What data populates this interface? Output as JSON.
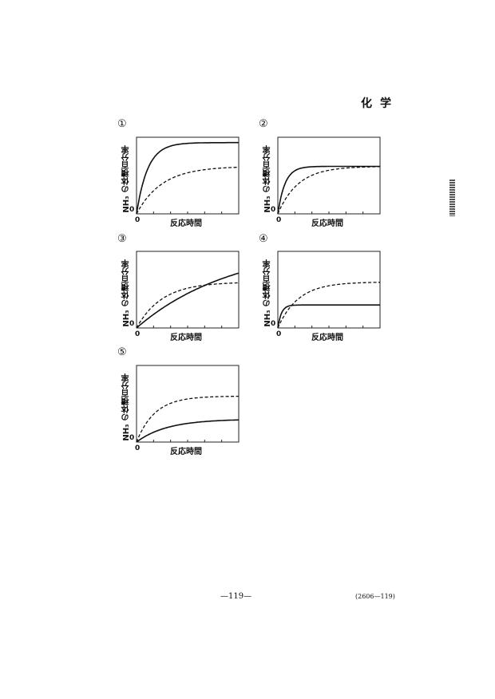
{
  "header": {
    "subject": "化学"
  },
  "footer": {
    "page": "—119—",
    "code": "(2606—119)"
  },
  "chart_data": [
    {
      "type": "line",
      "label": "①",
      "ylabel": "NH₃ の体積百分率",
      "xlabel": "反応時間",
      "y_origin": "0",
      "x_origin": "0",
      "series": [
        {
          "name": "solid",
          "style": "solid",
          "plateau": 0.93,
          "time_constant": 1.1
        },
        {
          "name": "dashed",
          "style": "dashed",
          "plateau": 0.62,
          "time_constant": 2.5
        }
      ]
    },
    {
      "type": "line",
      "label": "②",
      "ylabel": "NH₃ の体積百分率",
      "xlabel": "反応時間",
      "y_origin": "0",
      "x_origin": "0",
      "series": [
        {
          "name": "solid",
          "style": "solid",
          "plateau": 0.62,
          "time_constant": 0.7
        },
        {
          "name": "dashed",
          "style": "dashed",
          "plateau": 0.62,
          "time_constant": 2.0
        }
      ]
    },
    {
      "type": "line",
      "label": "③",
      "ylabel": "NH₃ の体積百分率",
      "xlabel": "反応時間",
      "y_origin": "0",
      "x_origin": "0",
      "series": [
        {
          "name": "solid",
          "style": "solid",
          "plateau": 1.1,
          "time_constant": 9.5
        },
        {
          "name": "dashed",
          "style": "dashed",
          "plateau": 0.6,
          "time_constant": 2.5
        }
      ]
    },
    {
      "type": "line",
      "label": "④",
      "ylabel": "NH₃ の体積百分率",
      "xlabel": "反応時間",
      "y_origin": "0",
      "x_origin": "0",
      "series": [
        {
          "name": "solid",
          "style": "solid",
          "plateau": 0.3,
          "time_constant": 0.35
        },
        {
          "name": "dashed",
          "style": "dashed",
          "plateau": 0.6,
          "time_constant": 2.0
        }
      ]
    },
    {
      "type": "line",
      "label": "⑤",
      "ylabel": "NH₃ の体積百分率",
      "xlabel": "反応時間",
      "y_origin": "0",
      "x_origin": "0",
      "series": [
        {
          "name": "solid",
          "style": "solid",
          "plateau": 0.3,
          "time_constant": 3.0
        },
        {
          "name": "dashed",
          "style": "dashed",
          "plateau": 0.6,
          "time_constant": 1.8
        }
      ]
    }
  ]
}
